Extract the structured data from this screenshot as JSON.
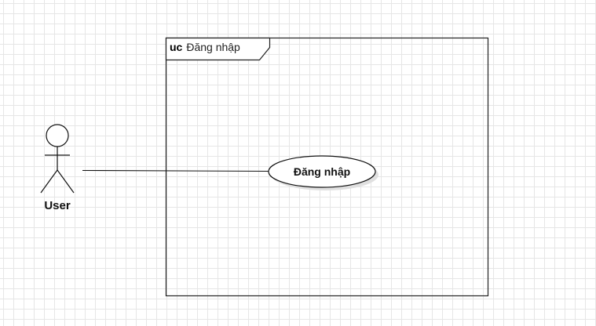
{
  "diagram": {
    "frame": {
      "keyword": "uc",
      "name": "Đăng nhập"
    },
    "actor": {
      "name": "User"
    },
    "use_case": {
      "name": "Đăng nhập"
    }
  }
}
